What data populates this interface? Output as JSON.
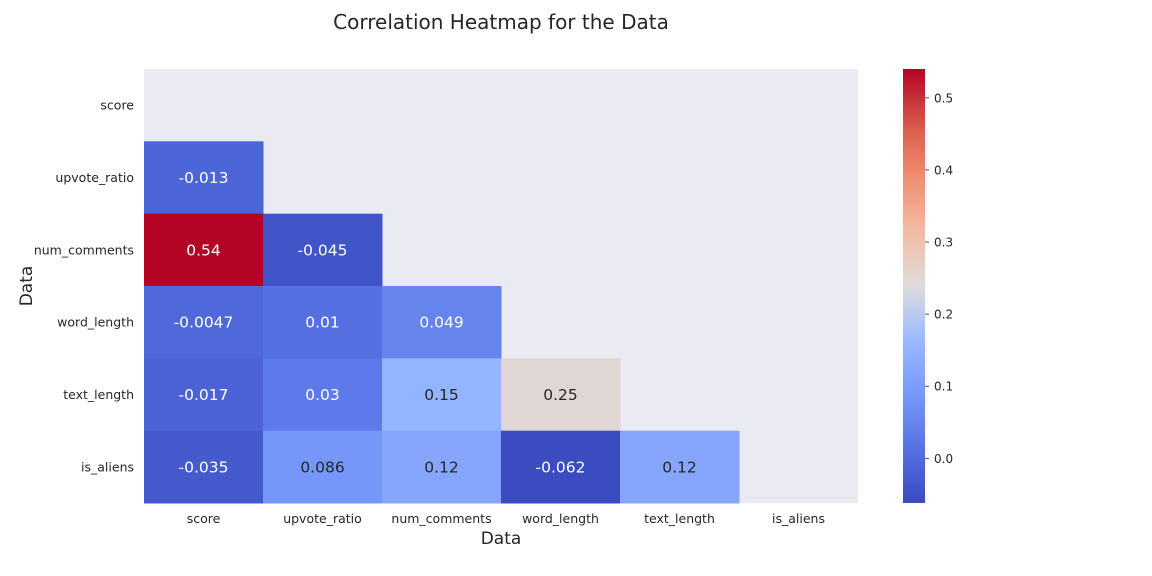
{
  "chart_data": {
    "type": "heatmap",
    "title": "Correlation Heatmap for the Data",
    "xlabel": "Data",
    "ylabel": "Data",
    "x_labels": [
      "score",
      "upvote_ratio",
      "num_comments",
      "word_length",
      "text_length",
      "is_aliens"
    ],
    "y_labels": [
      "score",
      "upvote_ratio",
      "num_comments",
      "word_length",
      "text_length",
      "is_aliens"
    ],
    "mask": "upper-triangle-including-diagonal",
    "cells": [
      {
        "row": 1,
        "col": 0,
        "value": -0.013,
        "label": "-0.013"
      },
      {
        "row": 2,
        "col": 0,
        "value": 0.54,
        "label": "0.54"
      },
      {
        "row": 2,
        "col": 1,
        "value": -0.045,
        "label": "-0.045"
      },
      {
        "row": 3,
        "col": 0,
        "value": -0.0047,
        "label": "-0.0047"
      },
      {
        "row": 3,
        "col": 1,
        "value": 0.01,
        "label": "0.01"
      },
      {
        "row": 3,
        "col": 2,
        "value": 0.049,
        "label": "0.049"
      },
      {
        "row": 4,
        "col": 0,
        "value": -0.017,
        "label": "-0.017"
      },
      {
        "row": 4,
        "col": 1,
        "value": 0.03,
        "label": "0.03"
      },
      {
        "row": 4,
        "col": 2,
        "value": 0.15,
        "label": "0.15"
      },
      {
        "row": 4,
        "col": 3,
        "value": 0.25,
        "label": "0.25"
      },
      {
        "row": 5,
        "col": 0,
        "value": -0.035,
        "label": "-0.035"
      },
      {
        "row": 5,
        "col": 1,
        "value": 0.086,
        "label": "0.086"
      },
      {
        "row": 5,
        "col": 2,
        "value": 0.12,
        "label": "0.12"
      },
      {
        "row": 5,
        "col": 3,
        "value": -0.062,
        "label": "-0.062"
      },
      {
        "row": 5,
        "col": 4,
        "value": 0.12,
        "label": "0.12"
      }
    ],
    "colormap": "coolwarm",
    "colorbar": {
      "vmin": -0.062,
      "vmax": 0.54,
      "ticks": [
        0.0,
        0.1,
        0.2,
        0.3,
        0.4,
        0.5
      ],
      "tick_labels": [
        "0.0",
        "0.1",
        "0.2",
        "0.3",
        "0.4",
        "0.5"
      ]
    },
    "background_color": "#eaeaf2",
    "grid": false,
    "legend": "colorbar-right"
  }
}
